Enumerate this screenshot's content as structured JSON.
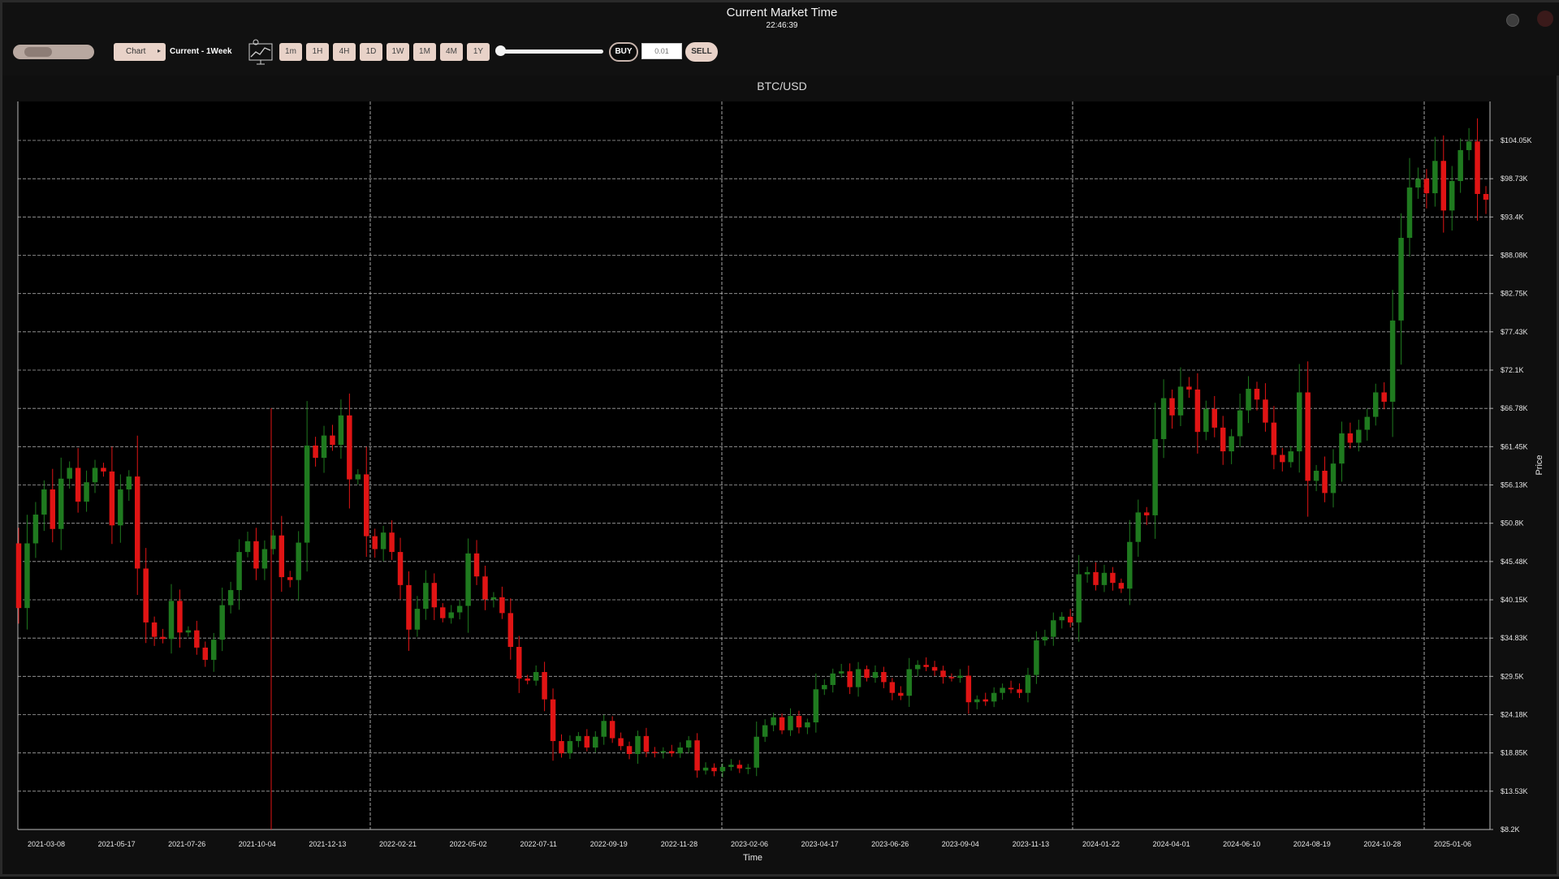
{
  "header": {
    "title": "Current Market Time",
    "clock": "22:46:39"
  },
  "toolbar": {
    "chart_dropdown_label": "Chart",
    "chart_dropdown_arrow": "▸",
    "current_label": "Current - 1Week",
    "chart_icon": "chart-settings-icon",
    "timeframes": [
      "1m",
      "1H",
      "4H",
      "1D",
      "1W",
      "1M",
      "4M",
      "1Y"
    ],
    "buy_label": "BUY",
    "qty_placeholder": "0.01",
    "sell_label": "SELL"
  },
  "colors": {
    "up": "#1f7a1f",
    "down": "#e01414",
    "button_bg": "#e8d2c8",
    "grid": "#cfcfcf",
    "plot_bg": "#000000"
  },
  "chart_data": {
    "type": "candlestick",
    "title": "BTC/USD",
    "xlabel": "Time",
    "ylabel": "Price",
    "grid": true,
    "y_ticks": [
      "$8.2K",
      "$13.53K",
      "$18.85K",
      "$24.18K",
      "$29.5K",
      "$34.83K",
      "$40.15K",
      "$45.48K",
      "$50.8K",
      "$56.13K",
      "$61.45K",
      "$66.78K",
      "$72.1K",
      "$77.43K",
      "$82.75K",
      "$88.08K",
      "$93.4K",
      "$98.73K",
      "$104.05K"
    ],
    "ylim": [
      8200,
      109000
    ],
    "x_ticks": [
      "2021-03-08",
      "2021-05-17",
      "2021-07-26",
      "2021-10-04",
      "2021-12-13",
      "2022-02-21",
      "2022-05-02",
      "2022-07-11",
      "2022-09-19",
      "2022-11-28",
      "2023-02-06",
      "2023-04-17",
      "2023-06-26",
      "2023-09-04",
      "2023-11-13",
      "2024-01-22",
      "2024-04-01",
      "2024-06-10",
      "2024-08-19",
      "2024-10-28",
      "2025-01-06"
    ],
    "close": [
      39000,
      48000,
      52000,
      55500,
      50000,
      57000,
      58500,
      53800,
      56500,
      58500,
      58000,
      50500,
      55500,
      57300,
      44500,
      37000,
      35000,
      34700,
      40000,
      35600,
      35900,
      33500,
      31800,
      34600,
      39400,
      41500,
      46800,
      48300,
      44500,
      47200,
      49100,
      43300,
      42900,
      48100,
      61600,
      59900,
      63000,
      61700,
      65800,
      56900,
      57600,
      49000,
      47200,
      49500,
      46800,
      42200,
      36000,
      38900,
      42500,
      39100,
      37600,
      38400,
      39300,
      46600,
      43400,
      40200,
      40500,
      38300,
      33600,
      29200,
      28900,
      30100,
      26300,
      20500,
      18800,
      20500,
      21200,
      19600,
      21100,
      23300,
      20900,
      19800,
      18700,
      21200,
      19000,
      18900,
      19100,
      18800,
      19600,
      20600,
      16400,
      16800,
      16300,
      16900,
      17200,
      16700,
      16800,
      21100,
      22700,
      23800,
      22000,
      24000,
      22400,
      23100,
      27700,
      28300,
      29900,
      30200,
      28000,
      30500,
      29300,
      30100,
      28700,
      27200,
      26800,
      30500,
      31100,
      30800,
      30300,
      29400,
      29300,
      29600,
      25900,
      26300,
      26000,
      27200,
      27900,
      27700,
      27200,
      29700,
      34500,
      35000,
      37300,
      37800,
      37000,
      43700,
      44000,
      42200,
      43900,
      42500,
      41700,
      48200,
      52300,
      51900,
      62500,
      68200,
      65800,
      69800,
      69400,
      63500,
      66700,
      64100,
      60800,
      62900,
      66500,
      69500,
      68000,
      64800,
      60300,
      59300,
      60800,
      69000,
      56700,
      58100,
      55000,
      59100,
      63300,
      62000,
      63800,
      65600,
      69000,
      67700,
      79000,
      90500,
      97500,
      98700,
      96700,
      101200,
      94300,
      98400,
      102700,
      103900,
      96600,
      95800
    ],
    "note": "weekly candles, values estimated from the axis"
  }
}
